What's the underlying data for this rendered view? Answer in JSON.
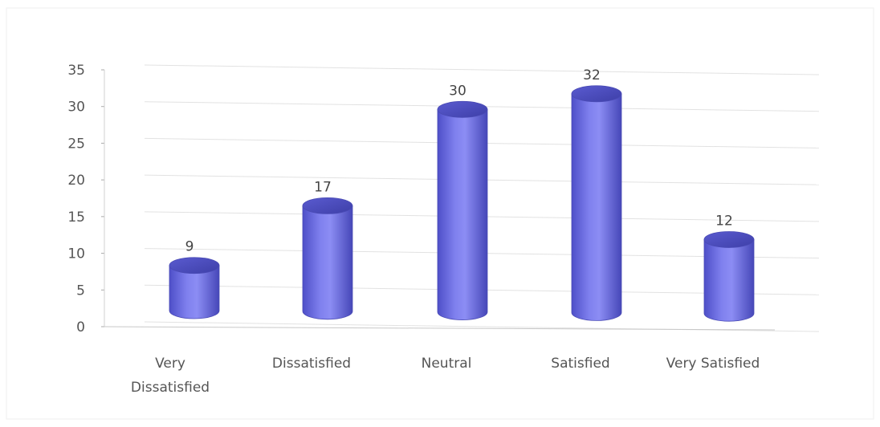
{
  "chart_data": {
    "type": "bar",
    "style": "3d-cylinder",
    "categories": [
      "Very Dissatisfied",
      "Dissatisfied",
      "Neutral",
      "Satisfied",
      "Very Satisfied"
    ],
    "category_lines": [
      [
        "Very",
        "Dissatisfied"
      ],
      [
        "Dissatisfied"
      ],
      [
        "Neutral"
      ],
      [
        "Satisfied"
      ],
      [
        "Very Satisfied"
      ]
    ],
    "values": [
      9,
      17,
      30,
      32,
      12
    ],
    "data_labels": [
      "9",
      "17",
      "30",
      "32",
      "12"
    ],
    "yticks": [
      "0",
      "5",
      "10",
      "15",
      "20",
      "25",
      "30",
      "35"
    ],
    "ylim": [
      0,
      35
    ],
    "title": "",
    "xlabel": "",
    "ylabel": "",
    "grid": true,
    "legend": "none",
    "bar_color": "#6f6fe6"
  }
}
